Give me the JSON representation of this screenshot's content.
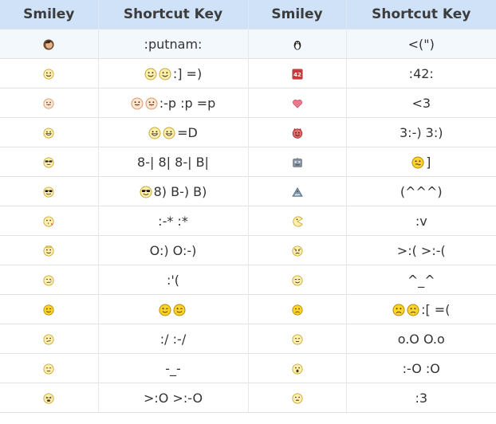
{
  "headers": [
    "Smiley",
    "Shortcut Key",
    "Smiley",
    "Shortcut Key"
  ],
  "rows": [
    {
      "left_icon": "putnam-icon",
      "left_key_icons": [],
      "left_key": ":putnam:",
      "right_icon": "penguin-icon",
      "right_key_icons": [],
      "right_key": "<(\")"
    },
    {
      "left_icon": "smile-icon",
      "left_key_icons": [
        "smile-icon",
        "smile-icon"
      ],
      "left_key": ":] =)",
      "right_icon": "42-icon",
      "right_key_icons": [],
      "right_key": ":42:"
    },
    {
      "left_icon": "tongue-icon",
      "left_key_icons": [
        "tongue-icon",
        "tongue-icon"
      ],
      "left_key": ":-p :p =p",
      "right_icon": "heart-icon",
      "right_key_icons": [],
      "right_key": "<3"
    },
    {
      "left_icon": "grin-icon",
      "left_key_icons": [
        "grin-icon",
        "grin-icon"
      ],
      "left_key": "=D",
      "right_icon": "devil-icon",
      "right_key_icons": [],
      "right_key": "3:-) 3:)"
    },
    {
      "left_icon": "glasses-icon",
      "left_key_icons": [],
      "left_key": "8-| 8| 8-| B|",
      "right_icon": "robot-icon",
      "right_key_icons": [
        "confused-icon"
      ],
      "right_key": "]"
    },
    {
      "left_icon": "sunglasses-icon",
      "left_key_icons": [
        "sunglasses-icon"
      ],
      "left_key": "8) B-) B)",
      "right_icon": "shark-icon",
      "right_key_icons": [],
      "right_key": "(^^^)"
    },
    {
      "left_icon": "kiss-icon",
      "left_key_icons": [],
      "left_key": ":-* :*",
      "right_icon": "pacman-icon",
      "right_key_icons": [],
      "right_key": ":v"
    },
    {
      "left_icon": "angel-icon",
      "left_key_icons": [],
      "left_key": "O:) O:-)",
      "right_icon": "grumpy-icon",
      "right_key_icons": [],
      "right_key": ">:( >:-("
    },
    {
      "left_icon": "cry-icon",
      "left_key_icons": [],
      "left_key": ":'(",
      "right_icon": "kiki-icon",
      "right_key_icons": [],
      "right_key": "^_^"
    },
    {
      "left_icon": "wink-icon",
      "left_key_icons": [
        "wink-icon",
        "wink-icon"
      ],
      "left_key": "",
      "right_icon": "frown-icon",
      "right_key_icons": [
        "frown-icon",
        "frown-icon"
      ],
      "right_key": ":[ =("
    },
    {
      "left_icon": "unsure-icon",
      "left_key_icons": [],
      "left_key": ":/ :-/",
      "right_icon": "squint-icon",
      "right_key_icons": [],
      "right_key": "o.O O.o"
    },
    {
      "left_icon": "squint-icon",
      "left_key_icons": [],
      "left_key": "-_-",
      "right_icon": "gasp-icon",
      "right_key_icons": [],
      "right_key": ":-O :O"
    },
    {
      "left_icon": "upset-icon",
      "left_key_icons": [],
      "left_key": ">:O >:-O",
      "right_icon": "colonthree-icon",
      "right_key_icons": [],
      "right_key": ":3"
    }
  ]
}
